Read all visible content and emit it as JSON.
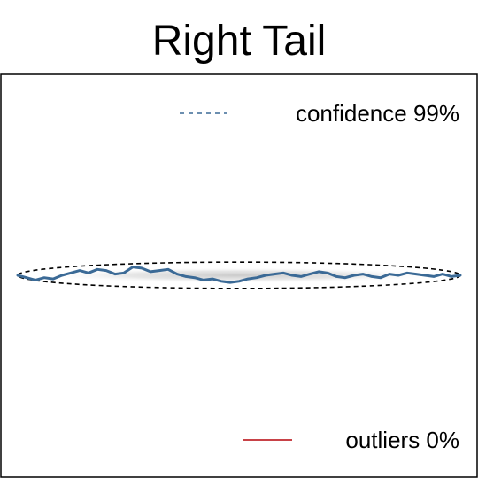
{
  "chart_data": {
    "type": "line",
    "title": "Right Tail",
    "xlabel": "",
    "ylabel": "",
    "grid": false,
    "axes_ticks": false,
    "xlim": [
      0,
      1
    ],
    "ylim": [
      -1,
      1
    ],
    "confidence_region": {
      "label": "confidence 99%",
      "shape": "ellipse",
      "center_y": 0,
      "half_height": 0.055,
      "line_style": "dashed",
      "color": "#000000"
    },
    "series": [
      {
        "name": "",
        "color": "#3b6a96",
        "x": [
          0,
          0.02,
          0.04,
          0.06,
          0.08,
          0.1,
          0.12,
          0.14,
          0.16,
          0.18,
          0.2,
          0.22,
          0.24,
          0.26,
          0.28,
          0.3,
          0.32,
          0.34,
          0.36,
          0.38,
          0.4,
          0.42,
          0.44,
          0.46,
          0.48,
          0.5,
          0.52,
          0.54,
          0.56,
          0.58,
          0.6,
          0.62,
          0.64,
          0.66,
          0.68,
          0.7,
          0.72,
          0.74,
          0.76,
          0.78,
          0.8,
          0.82,
          0.84,
          0.86,
          0.88,
          0.9,
          0.92,
          0.94,
          0.96,
          0.98,
          1.0
        ],
        "y": [
          0,
          -0.01,
          -0.02,
          -0.01,
          -0.015,
          0.0,
          0.01,
          0.02,
          0.01,
          0.025,
          0.02,
          0.005,
          0.01,
          0.035,
          0.03,
          0.015,
          0.02,
          0.025,
          0.005,
          -0.005,
          -0.01,
          -0.02,
          -0.015,
          -0.025,
          -0.03,
          -0.025,
          -0.015,
          -0.01,
          0.0,
          0.005,
          0.01,
          0.0,
          -0.005,
          0.005,
          0.015,
          0.01,
          -0.005,
          -0.01,
          0.0,
          0.005,
          -0.005,
          -0.01,
          0.005,
          0.0,
          0.01,
          0.005,
          0.0,
          -0.005,
          0.005,
          -0.005,
          0.0
        ]
      }
    ],
    "legend": [
      {
        "label": "confidence 99%",
        "style": "dashed",
        "color": "#3b6a96",
        "placement": "top-right"
      },
      {
        "label": "outliers 0%",
        "style": "solid",
        "color": "#c0272d",
        "placement": "bottom-right"
      }
    ]
  }
}
